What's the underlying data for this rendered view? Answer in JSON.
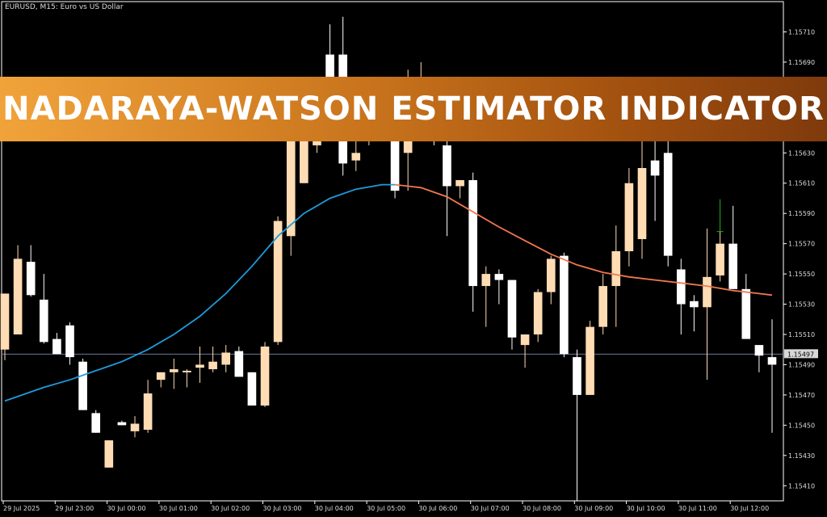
{
  "header": {
    "symbol_label": "EURUSD, M15:  Euro vs US Dollar"
  },
  "banner": {
    "title": "NADARAYA-WATSON ESTIMATOR INDICATOR"
  },
  "chart_data": {
    "type": "candlestick",
    "symbol": "EURUSD",
    "timeframe": "M15",
    "ylim": [
      1.154,
      1.1573
    ],
    "y_ticks": [
      "1.15710",
      "1.15690",
      "1.15630",
      "1.15610",
      "1.15590",
      "1.15570",
      "1.15550",
      "1.15530",
      "1.15510",
      "1.15490",
      "1.15470",
      "1.15450",
      "1.15430",
      "1.15410"
    ],
    "x_ticks": [
      "29 Jul 2025",
      "29 Jul 23:00",
      "30 Jul 00:00",
      "30 Jul 01:00",
      "30 Jul 02:00",
      "30 Jul 03:00",
      "30 Jul 04:00",
      "30 Jul 05:00",
      "30 Jul 06:00",
      "30 Jul 07:00",
      "30 Jul 08:00",
      "30 Jul 09:00",
      "30 Jul 10:00",
      "30 Jul 11:00",
      "30 Jul 12:00"
    ],
    "current_price": "1.15497",
    "colors": {
      "bull": "#ffdcb4",
      "bear": "#ffffff",
      "estimator_up": "#1e9bdc",
      "estimator_down": "#f07850",
      "signal": "#1eb41e",
      "grid_line": "#6e7896",
      "axis_text": "#dddddd"
    },
    "candles": [
      {
        "o": 1.155,
        "h": 1.15537,
        "l": 1.15493,
        "c": 1.15537
      },
      {
        "o": 1.1551,
        "h": 1.15569,
        "l": 1.15511,
        "c": 1.1556
      },
      {
        "o": 1.15558,
        "h": 1.15569,
        "l": 1.15535,
        "c": 1.15536
      },
      {
        "o": 1.15533,
        "h": 1.1555,
        "l": 1.15504,
        "c": 1.15505
      },
      {
        "o": 1.15507,
        "h": 1.15511,
        "l": 1.15497,
        "c": 1.15497
      },
      {
        "o": 1.15516,
        "h": 1.15518,
        "l": 1.1549,
        "c": 1.15495
      },
      {
        "o": 1.15492,
        "h": 1.15494,
        "l": 1.1546,
        "c": 1.1546
      },
      {
        "o": 1.15458,
        "h": 1.1546,
        "l": 1.15445,
        "c": 1.15445
      },
      {
        "o": 1.15422,
        "h": 1.1544,
        "l": 1.15422,
        "c": 1.1544
      },
      {
        "o": 1.15452,
        "h": 1.15453,
        "l": 1.1545,
        "c": 1.1545
      },
      {
        "o": 1.15446,
        "h": 1.15456,
        "l": 1.15442,
        "c": 1.15451
      },
      {
        "o": 1.15447,
        "h": 1.1548,
        "l": 1.15445,
        "c": 1.15471
      },
      {
        "o": 1.1548,
        "h": 1.15485,
        "l": 1.15475,
        "c": 1.15485
      },
      {
        "o": 1.15485,
        "h": 1.15494,
        "l": 1.15474,
        "c": 1.15487
      },
      {
        "o": 1.15486,
        "h": 1.15487,
        "l": 1.15475,
        "c": 1.15486
      },
      {
        "o": 1.15488,
        "h": 1.15502,
        "l": 1.15478,
        "c": 1.1549
      },
      {
        "o": 1.15487,
        "h": 1.15502,
        "l": 1.15485,
        "c": 1.15492
      },
      {
        "o": 1.1549,
        "h": 1.15503,
        "l": 1.15485,
        "c": 1.15498
      },
      {
        "o": 1.15499,
        "h": 1.15502,
        "l": 1.15482,
        "c": 1.15482
      },
      {
        "o": 1.15485,
        "h": 1.15485,
        "l": 1.15463,
        "c": 1.15463
      },
      {
        "o": 1.15463,
        "h": 1.15505,
        "l": 1.15462,
        "c": 1.15502
      },
      {
        "o": 1.15505,
        "h": 1.15588,
        "l": 1.15503,
        "c": 1.15585
      },
      {
        "o": 1.15575,
        "h": 1.15638,
        "l": 1.15562,
        "c": 1.15638
      },
      {
        "o": 1.1561,
        "h": 1.15648,
        "l": 1.1561,
        "c": 1.1564
      },
      {
        "o": 1.15635,
        "h": 1.1566,
        "l": 1.1563,
        "c": 1.1565
      },
      {
        "o": 1.15695,
        "h": 1.15715,
        "l": 1.1564,
        "c": 1.1565
      },
      {
        "o": 1.15695,
        "h": 1.1572,
        "l": 1.15615,
        "c": 1.15623
      },
      {
        "o": 1.15625,
        "h": 1.1564,
        "l": 1.15618,
        "c": 1.1563
      },
      {
        "o": 1.1564,
        "h": 1.15665,
        "l": 1.15635,
        "c": 1.1566
      },
      {
        "o": 1.15655,
        "h": 1.1566,
        "l": 1.1564,
        "c": 1.1565
      },
      {
        "o": 1.1564,
        "h": 1.15655,
        "l": 1.156,
        "c": 1.15605
      },
      {
        "o": 1.1563,
        "h": 1.15685,
        "l": 1.15605,
        "c": 1.15645
      },
      {
        "o": 1.1565,
        "h": 1.1569,
        "l": 1.1564,
        "c": 1.1565
      },
      {
        "o": 1.1566,
        "h": 1.1567,
        "l": 1.15635,
        "c": 1.1564
      },
      {
        "o": 1.15635,
        "h": 1.1564,
        "l": 1.15575,
        "c": 1.15608
      },
      {
        "o": 1.15608,
        "h": 1.15612,
        "l": 1.156,
        "c": 1.15612
      },
      {
        "o": 1.15612,
        "h": 1.15617,
        "l": 1.15525,
        "c": 1.15542
      },
      {
        "o": 1.15542,
        "h": 1.15555,
        "l": 1.15515,
        "c": 1.1555
      },
      {
        "o": 1.1555,
        "h": 1.15553,
        "l": 1.1553,
        "c": 1.15546
      },
      {
        "o": 1.15546,
        "h": 1.15546,
        "l": 1.155,
        "c": 1.15508
      },
      {
        "o": 1.15503,
        "h": 1.1551,
        "l": 1.15488,
        "c": 1.1551
      },
      {
        "o": 1.1551,
        "h": 1.1554,
        "l": 1.15505,
        "c": 1.15538
      },
      {
        "o": 1.15538,
        "h": 1.15562,
        "l": 1.1553,
        "c": 1.1556
      },
      {
        "o": 1.15562,
        "h": 1.15564,
        "l": 1.15495,
        "c": 1.15497
      },
      {
        "o": 1.15495,
        "h": 1.155,
        "l": 1.154,
        "c": 1.1547
      },
      {
        "o": 1.1547,
        "h": 1.15519,
        "l": 1.1547,
        "c": 1.15515
      },
      {
        "o": 1.15515,
        "h": 1.1555,
        "l": 1.1551,
        "c": 1.15542
      },
      {
        "o": 1.15542,
        "h": 1.15582,
        "l": 1.15515,
        "c": 1.15565
      },
      {
        "o": 1.15565,
        "h": 1.1562,
        "l": 1.15555,
        "c": 1.1561
      },
      {
        "o": 1.15573,
        "h": 1.1568,
        "l": 1.1556,
        "c": 1.1562
      },
      {
        "o": 1.15625,
        "h": 1.1568,
        "l": 1.15585,
        "c": 1.15615
      },
      {
        "o": 1.1563,
        "h": 1.1565,
        "l": 1.15555,
        "c": 1.15562
      },
      {
        "o": 1.15553,
        "h": 1.1556,
        "l": 1.1551,
        "c": 1.1553
      },
      {
        "o": 1.15532,
        "h": 1.15536,
        "l": 1.15512,
        "c": 1.15528
      },
      {
        "o": 1.15528,
        "h": 1.1558,
        "l": 1.1548,
        "c": 1.15548
      },
      {
        "o": 1.15549,
        "h": 1.15578,
        "l": 1.15545,
        "c": 1.1557
      },
      {
        "o": 1.1557,
        "h": 1.15595,
        "l": 1.1554,
        "c": 1.1554
      },
      {
        "o": 1.1554,
        "h": 1.1555,
        "l": 1.1551,
        "c": 1.15507
      },
      {
        "o": 1.15503,
        "h": 1.155,
        "l": 1.15485,
        "c": 1.15496
      },
      {
        "o": 1.15495,
        "h": 1.1552,
        "l": 1.15445,
        "c": 1.1549
      }
    ],
    "estimator": [
      {
        "x": 0,
        "y": 1.15466
      },
      {
        "x": 3,
        "y": 1.15475
      },
      {
        "x": 5,
        "y": 1.1548
      },
      {
        "x": 7,
        "y": 1.15486
      },
      {
        "x": 9,
        "y": 1.15492
      },
      {
        "x": 11,
        "y": 1.155
      },
      {
        "x": 13,
        "y": 1.1551
      },
      {
        "x": 15,
        "y": 1.15522
      },
      {
        "x": 17,
        "y": 1.15537
      },
      {
        "x": 19,
        "y": 1.15555
      },
      {
        "x": 21,
        "y": 1.15575
      },
      {
        "x": 23,
        "y": 1.1559
      },
      {
        "x": 25,
        "y": 1.156
      },
      {
        "x": 27,
        "y": 1.15606
      },
      {
        "x": 29,
        "y": 1.15609
      },
      {
        "x": 30,
        "y": 1.15609
      },
      {
        "x": 32,
        "y": 1.15607
      },
      {
        "x": 34,
        "y": 1.15601
      },
      {
        "x": 36,
        "y": 1.15591
      },
      {
        "x": 38,
        "y": 1.15581
      },
      {
        "x": 40,
        "y": 1.15572
      },
      {
        "x": 42,
        "y": 1.15563
      },
      {
        "x": 44,
        "y": 1.15556
      },
      {
        "x": 46,
        "y": 1.15551
      },
      {
        "x": 48,
        "y": 1.15548
      },
      {
        "x": 50,
        "y": 1.15546
      },
      {
        "x": 52,
        "y": 1.15544
      },
      {
        "x": 54,
        "y": 1.15542
      },
      {
        "x": 56,
        "y": 1.15539
      },
      {
        "x": 58,
        "y": 1.15537
      },
      {
        "x": 59,
        "y": 1.15536
      }
    ],
    "estimator_turn_index": 30,
    "signal_index": 55
  }
}
